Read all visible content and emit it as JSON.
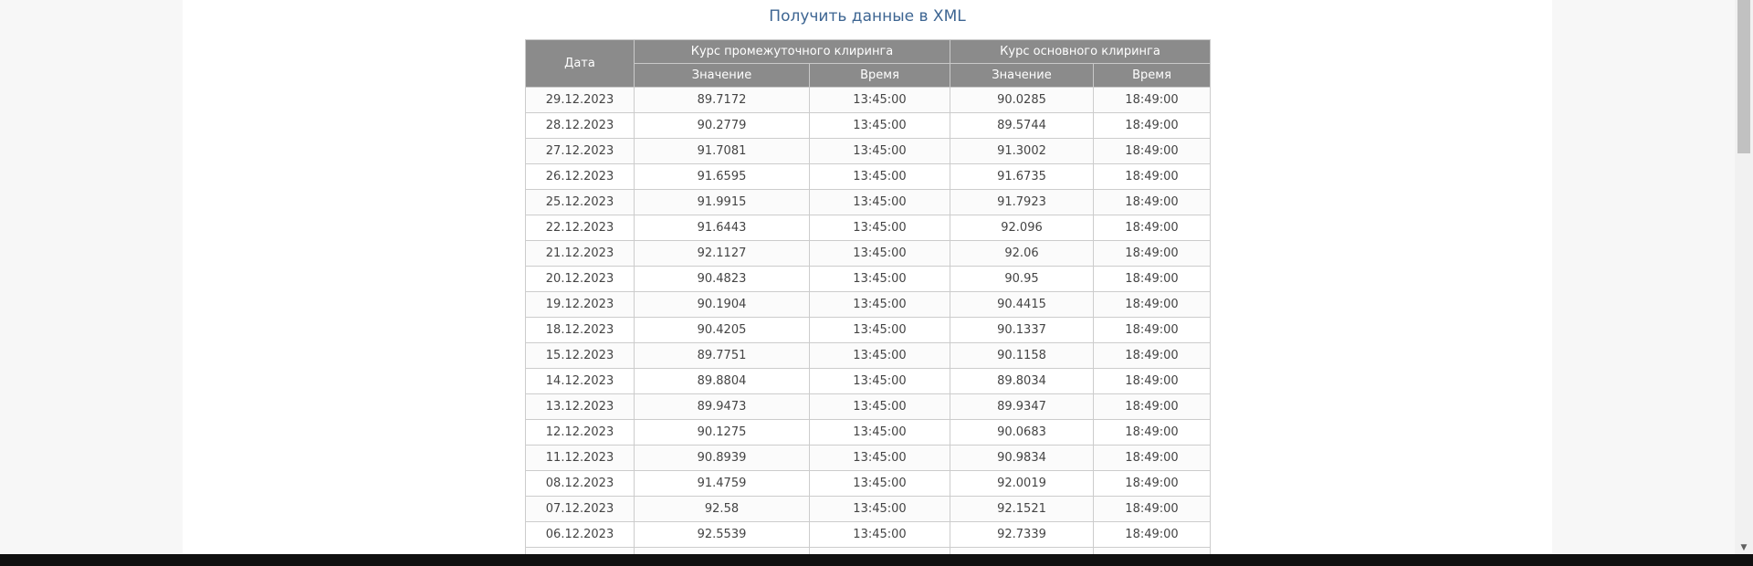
{
  "xml_link": {
    "label": "Получить данные в XML"
  },
  "table": {
    "header_date": "Дата",
    "group_intermediate": "Курс промежуточного клиринга",
    "group_main": "Курс основного клиринга",
    "col_value": "Значение",
    "col_time": "Время",
    "rows": [
      [
        "29.12.2023",
        "89.7172",
        "13:45:00",
        "90.0285",
        "18:49:00"
      ],
      [
        "28.12.2023",
        "90.2779",
        "13:45:00",
        "89.5744",
        "18:49:00"
      ],
      [
        "27.12.2023",
        "91.7081",
        "13:45:00",
        "91.3002",
        "18:49:00"
      ],
      [
        "26.12.2023",
        "91.6595",
        "13:45:00",
        "91.6735",
        "18:49:00"
      ],
      [
        "25.12.2023",
        "91.9915",
        "13:45:00",
        "91.7923",
        "18:49:00"
      ],
      [
        "22.12.2023",
        "91.6443",
        "13:45:00",
        "92.096",
        "18:49:00"
      ],
      [
        "21.12.2023",
        "92.1127",
        "13:45:00",
        "92.06",
        "18:49:00"
      ],
      [
        "20.12.2023",
        "90.4823",
        "13:45:00",
        "90.95",
        "18:49:00"
      ],
      [
        "19.12.2023",
        "90.1904",
        "13:45:00",
        "90.4415",
        "18:49:00"
      ],
      [
        "18.12.2023",
        "90.4205",
        "13:45:00",
        "90.1337",
        "18:49:00"
      ],
      [
        "15.12.2023",
        "89.7751",
        "13:45:00",
        "90.1158",
        "18:49:00"
      ],
      [
        "14.12.2023",
        "89.8804",
        "13:45:00",
        "89.8034",
        "18:49:00"
      ],
      [
        "13.12.2023",
        "89.9473",
        "13:45:00",
        "89.9347",
        "18:49:00"
      ],
      [
        "12.12.2023",
        "90.1275",
        "13:45:00",
        "90.0683",
        "18:49:00"
      ],
      [
        "11.12.2023",
        "90.8939",
        "13:45:00",
        "90.9834",
        "18:49:00"
      ],
      [
        "08.12.2023",
        "91.4759",
        "13:45:00",
        "92.0019",
        "18:49:00"
      ],
      [
        "07.12.2023",
        "92.58",
        "13:45:00",
        "92.1521",
        "18:49:00"
      ],
      [
        "06.12.2023",
        "92.5539",
        "13:45:00",
        "92.7339",
        "18:49:00"
      ],
      [
        "",
        "",
        "",
        "",
        ""
      ]
    ]
  },
  "scrollbar": {
    "up_arrow": "▲",
    "down_arrow": "▼"
  },
  "colors": {
    "header_bg": "#8b8b8b",
    "link": "#3d6592"
  }
}
